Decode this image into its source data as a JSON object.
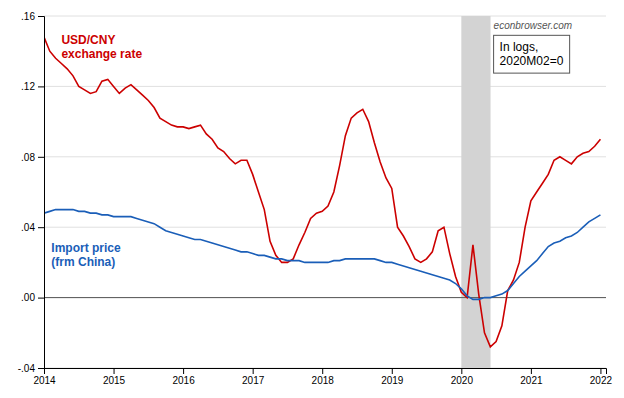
{
  "chart_data": {
    "type": "line",
    "x": [
      2014.0,
      2014.083,
      2014.167,
      2014.25,
      2014.333,
      2014.417,
      2014.5,
      2014.583,
      2014.667,
      2014.75,
      2014.833,
      2014.917,
      2015.0,
      2015.083,
      2015.167,
      2015.25,
      2015.333,
      2015.417,
      2015.5,
      2015.583,
      2015.667,
      2015.75,
      2015.833,
      2015.917,
      2016.0,
      2016.083,
      2016.167,
      2016.25,
      2016.333,
      2016.417,
      2016.5,
      2016.583,
      2016.667,
      2016.75,
      2016.833,
      2016.917,
      2017.0,
      2017.083,
      2017.167,
      2017.25,
      2017.333,
      2017.417,
      2017.5,
      2017.583,
      2017.667,
      2017.75,
      2017.833,
      2017.917,
      2018.0,
      2018.083,
      2018.167,
      2018.25,
      2018.333,
      2018.417,
      2018.5,
      2018.583,
      2018.667,
      2018.75,
      2018.833,
      2018.917,
      2019.0,
      2019.083,
      2019.167,
      2019.25,
      2019.333,
      2019.417,
      2019.5,
      2019.583,
      2019.667,
      2019.75,
      2019.833,
      2019.917,
      2020.0,
      2020.083,
      2020.167,
      2020.25,
      2020.333,
      2020.417,
      2020.5,
      2020.583,
      2020.667,
      2020.75,
      2020.833,
      2020.917,
      2021.0,
      2021.083,
      2021.167,
      2021.25,
      2021.333,
      2021.417,
      2021.5,
      2021.583,
      2021.667,
      2021.75,
      2021.833,
      2021.917,
      2022.0
    ],
    "series": [
      {
        "name": "USD/CNY\nexchange rate",
        "color": "#cc0000",
        "values": [
          0.148,
          0.14,
          0.136,
          0.133,
          0.13,
          0.126,
          0.12,
          0.118,
          0.116,
          0.117,
          0.123,
          0.124,
          0.12,
          0.116,
          0.119,
          0.121,
          0.118,
          0.115,
          0.112,
          0.108,
          0.102,
          0.1,
          0.098,
          0.097,
          0.097,
          0.096,
          0.097,
          0.098,
          0.093,
          0.09,
          0.085,
          0.083,
          0.079,
          0.076,
          0.078,
          0.078,
          0.07,
          0.06,
          0.05,
          0.032,
          0.024,
          0.02,
          0.02,
          0.022,
          0.03,
          0.037,
          0.045,
          0.048,
          0.049,
          0.052,
          0.06,
          0.075,
          0.092,
          0.102,
          0.105,
          0.107,
          0.1,
          0.088,
          0.077,
          0.068,
          0.062,
          0.04,
          0.035,
          0.029,
          0.022,
          0.02,
          0.022,
          0.026,
          0.038,
          0.04,
          0.025,
          0.012,
          0.003,
          0.0,
          0.03,
          0.002,
          -0.02,
          -0.028,
          -0.025,
          -0.016,
          0.004,
          0.01,
          0.02,
          0.04,
          0.055,
          0.06,
          0.065,
          0.07,
          0.078,
          0.08,
          0.078,
          0.076,
          0.08,
          0.082,
          0.083,
          0.086,
          0.09
        ]
      },
      {
        "name": "Import price\n(frm China)",
        "color": "#1a5eb8",
        "values": [
          0.048,
          0.049,
          0.05,
          0.05,
          0.05,
          0.05,
          0.049,
          0.049,
          0.048,
          0.048,
          0.047,
          0.047,
          0.046,
          0.046,
          0.046,
          0.046,
          0.045,
          0.044,
          0.043,
          0.042,
          0.04,
          0.038,
          0.037,
          0.036,
          0.035,
          0.034,
          0.033,
          0.033,
          0.032,
          0.031,
          0.03,
          0.029,
          0.028,
          0.027,
          0.026,
          0.026,
          0.025,
          0.024,
          0.024,
          0.023,
          0.022,
          0.022,
          0.021,
          0.021,
          0.021,
          0.02,
          0.02,
          0.02,
          0.02,
          0.02,
          0.021,
          0.021,
          0.022,
          0.022,
          0.022,
          0.022,
          0.022,
          0.022,
          0.021,
          0.02,
          0.02,
          0.019,
          0.018,
          0.017,
          0.016,
          0.015,
          0.014,
          0.013,
          0.012,
          0.011,
          0.01,
          0.008,
          0.005,
          0.001,
          -0.001,
          -0.001,
          0.0,
          0.0,
          0.001,
          0.002,
          0.004,
          0.008,
          0.012,
          0.015,
          0.018,
          0.021,
          0.025,
          0.029,
          0.031,
          0.032,
          0.034,
          0.035,
          0.037,
          0.04,
          0.043,
          0.045,
          0.047
        ]
      }
    ],
    "xlim": [
      2014.0,
      2022.08
    ],
    "xticks": [
      2014,
      2015,
      2016,
      2017,
      2018,
      2019,
      2020,
      2021,
      2022
    ],
    "ylim": [
      -0.04,
      0.16
    ],
    "yticks": [
      {
        "value": -0.04,
        "label": "-.04"
      },
      {
        "value": 0.0,
        "label": ".00"
      },
      {
        "value": 0.04,
        "label": ".04"
      },
      {
        "value": 0.08,
        "label": ".08"
      },
      {
        "value": 0.12,
        "label": ".12"
      },
      {
        "value": 0.16,
        "label": ".16"
      }
    ],
    "shade": {
      "start": 2020.0,
      "end": 2020.42
    },
    "hline": 0,
    "annotations": [
      "econbrowser.com",
      "In logs,\n2020M02=0"
    ],
    "grid": true
  }
}
